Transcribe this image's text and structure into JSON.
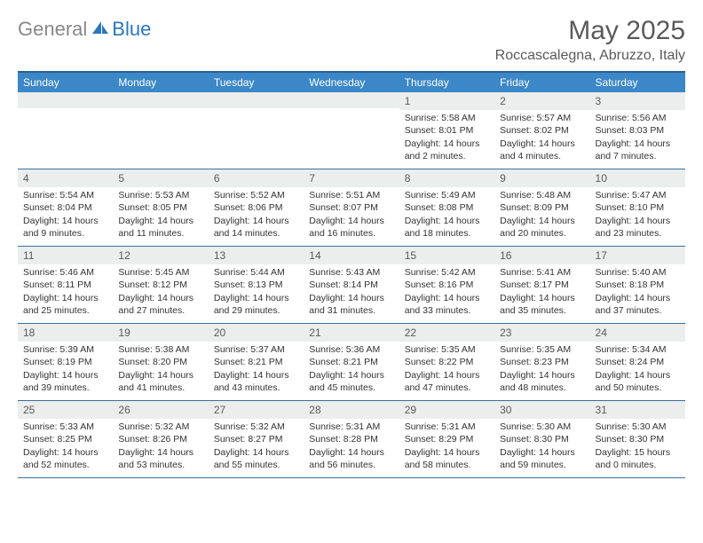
{
  "brand": {
    "gray": "General",
    "blue": "Blue"
  },
  "title": "May 2025",
  "location": "Roccascalegna, Abruzzo, Italy",
  "colors": {
    "header_bg": "#3b87c8",
    "header_border": "#2a5f8f",
    "row_border": "#3b6fa0",
    "daynum_bg": "#eceded",
    "text": "#333333",
    "muted": "#5a5a5a",
    "brand_blue": "#2a77bd",
    "brand_gray": "#888888"
  },
  "weekdays": [
    "Sunday",
    "Monday",
    "Tuesday",
    "Wednesday",
    "Thursday",
    "Friday",
    "Saturday"
  ],
  "weeks": [
    [
      {
        "n": "",
        "sr": "",
        "ss": "",
        "dl1": "",
        "dl2": ""
      },
      {
        "n": "",
        "sr": "",
        "ss": "",
        "dl1": "",
        "dl2": ""
      },
      {
        "n": "",
        "sr": "",
        "ss": "",
        "dl1": "",
        "dl2": ""
      },
      {
        "n": "",
        "sr": "",
        "ss": "",
        "dl1": "",
        "dl2": ""
      },
      {
        "n": "1",
        "sr": "Sunrise: 5:58 AM",
        "ss": "Sunset: 8:01 PM",
        "dl1": "Daylight: 14 hours",
        "dl2": "and 2 minutes."
      },
      {
        "n": "2",
        "sr": "Sunrise: 5:57 AM",
        "ss": "Sunset: 8:02 PM",
        "dl1": "Daylight: 14 hours",
        "dl2": "and 4 minutes."
      },
      {
        "n": "3",
        "sr": "Sunrise: 5:56 AM",
        "ss": "Sunset: 8:03 PM",
        "dl1": "Daylight: 14 hours",
        "dl2": "and 7 minutes."
      }
    ],
    [
      {
        "n": "4",
        "sr": "Sunrise: 5:54 AM",
        "ss": "Sunset: 8:04 PM",
        "dl1": "Daylight: 14 hours",
        "dl2": "and 9 minutes."
      },
      {
        "n": "5",
        "sr": "Sunrise: 5:53 AM",
        "ss": "Sunset: 8:05 PM",
        "dl1": "Daylight: 14 hours",
        "dl2": "and 11 minutes."
      },
      {
        "n": "6",
        "sr": "Sunrise: 5:52 AM",
        "ss": "Sunset: 8:06 PM",
        "dl1": "Daylight: 14 hours",
        "dl2": "and 14 minutes."
      },
      {
        "n": "7",
        "sr": "Sunrise: 5:51 AM",
        "ss": "Sunset: 8:07 PM",
        "dl1": "Daylight: 14 hours",
        "dl2": "and 16 minutes."
      },
      {
        "n": "8",
        "sr": "Sunrise: 5:49 AM",
        "ss": "Sunset: 8:08 PM",
        "dl1": "Daylight: 14 hours",
        "dl2": "and 18 minutes."
      },
      {
        "n": "9",
        "sr": "Sunrise: 5:48 AM",
        "ss": "Sunset: 8:09 PM",
        "dl1": "Daylight: 14 hours",
        "dl2": "and 20 minutes."
      },
      {
        "n": "10",
        "sr": "Sunrise: 5:47 AM",
        "ss": "Sunset: 8:10 PM",
        "dl1": "Daylight: 14 hours",
        "dl2": "and 23 minutes."
      }
    ],
    [
      {
        "n": "11",
        "sr": "Sunrise: 5:46 AM",
        "ss": "Sunset: 8:11 PM",
        "dl1": "Daylight: 14 hours",
        "dl2": "and 25 minutes."
      },
      {
        "n": "12",
        "sr": "Sunrise: 5:45 AM",
        "ss": "Sunset: 8:12 PM",
        "dl1": "Daylight: 14 hours",
        "dl2": "and 27 minutes."
      },
      {
        "n": "13",
        "sr": "Sunrise: 5:44 AM",
        "ss": "Sunset: 8:13 PM",
        "dl1": "Daylight: 14 hours",
        "dl2": "and 29 minutes."
      },
      {
        "n": "14",
        "sr": "Sunrise: 5:43 AM",
        "ss": "Sunset: 8:14 PM",
        "dl1": "Daylight: 14 hours",
        "dl2": "and 31 minutes."
      },
      {
        "n": "15",
        "sr": "Sunrise: 5:42 AM",
        "ss": "Sunset: 8:16 PM",
        "dl1": "Daylight: 14 hours",
        "dl2": "and 33 minutes."
      },
      {
        "n": "16",
        "sr": "Sunrise: 5:41 AM",
        "ss": "Sunset: 8:17 PM",
        "dl1": "Daylight: 14 hours",
        "dl2": "and 35 minutes."
      },
      {
        "n": "17",
        "sr": "Sunrise: 5:40 AM",
        "ss": "Sunset: 8:18 PM",
        "dl1": "Daylight: 14 hours",
        "dl2": "and 37 minutes."
      }
    ],
    [
      {
        "n": "18",
        "sr": "Sunrise: 5:39 AM",
        "ss": "Sunset: 8:19 PM",
        "dl1": "Daylight: 14 hours",
        "dl2": "and 39 minutes."
      },
      {
        "n": "19",
        "sr": "Sunrise: 5:38 AM",
        "ss": "Sunset: 8:20 PM",
        "dl1": "Daylight: 14 hours",
        "dl2": "and 41 minutes."
      },
      {
        "n": "20",
        "sr": "Sunrise: 5:37 AM",
        "ss": "Sunset: 8:21 PM",
        "dl1": "Daylight: 14 hours",
        "dl2": "and 43 minutes."
      },
      {
        "n": "21",
        "sr": "Sunrise: 5:36 AM",
        "ss": "Sunset: 8:21 PM",
        "dl1": "Daylight: 14 hours",
        "dl2": "and 45 minutes."
      },
      {
        "n": "22",
        "sr": "Sunrise: 5:35 AM",
        "ss": "Sunset: 8:22 PM",
        "dl1": "Daylight: 14 hours",
        "dl2": "and 47 minutes."
      },
      {
        "n": "23",
        "sr": "Sunrise: 5:35 AM",
        "ss": "Sunset: 8:23 PM",
        "dl1": "Daylight: 14 hours",
        "dl2": "and 48 minutes."
      },
      {
        "n": "24",
        "sr": "Sunrise: 5:34 AM",
        "ss": "Sunset: 8:24 PM",
        "dl1": "Daylight: 14 hours",
        "dl2": "and 50 minutes."
      }
    ],
    [
      {
        "n": "25",
        "sr": "Sunrise: 5:33 AM",
        "ss": "Sunset: 8:25 PM",
        "dl1": "Daylight: 14 hours",
        "dl2": "and 52 minutes."
      },
      {
        "n": "26",
        "sr": "Sunrise: 5:32 AM",
        "ss": "Sunset: 8:26 PM",
        "dl1": "Daylight: 14 hours",
        "dl2": "and 53 minutes."
      },
      {
        "n": "27",
        "sr": "Sunrise: 5:32 AM",
        "ss": "Sunset: 8:27 PM",
        "dl1": "Daylight: 14 hours",
        "dl2": "and 55 minutes."
      },
      {
        "n": "28",
        "sr": "Sunrise: 5:31 AM",
        "ss": "Sunset: 8:28 PM",
        "dl1": "Daylight: 14 hours",
        "dl2": "and 56 minutes."
      },
      {
        "n": "29",
        "sr": "Sunrise: 5:31 AM",
        "ss": "Sunset: 8:29 PM",
        "dl1": "Daylight: 14 hours",
        "dl2": "and 58 minutes."
      },
      {
        "n": "30",
        "sr": "Sunrise: 5:30 AM",
        "ss": "Sunset: 8:30 PM",
        "dl1": "Daylight: 14 hours",
        "dl2": "and 59 minutes."
      },
      {
        "n": "31",
        "sr": "Sunrise: 5:30 AM",
        "ss": "Sunset: 8:30 PM",
        "dl1": "Daylight: 15 hours",
        "dl2": "and 0 minutes."
      }
    ]
  ]
}
